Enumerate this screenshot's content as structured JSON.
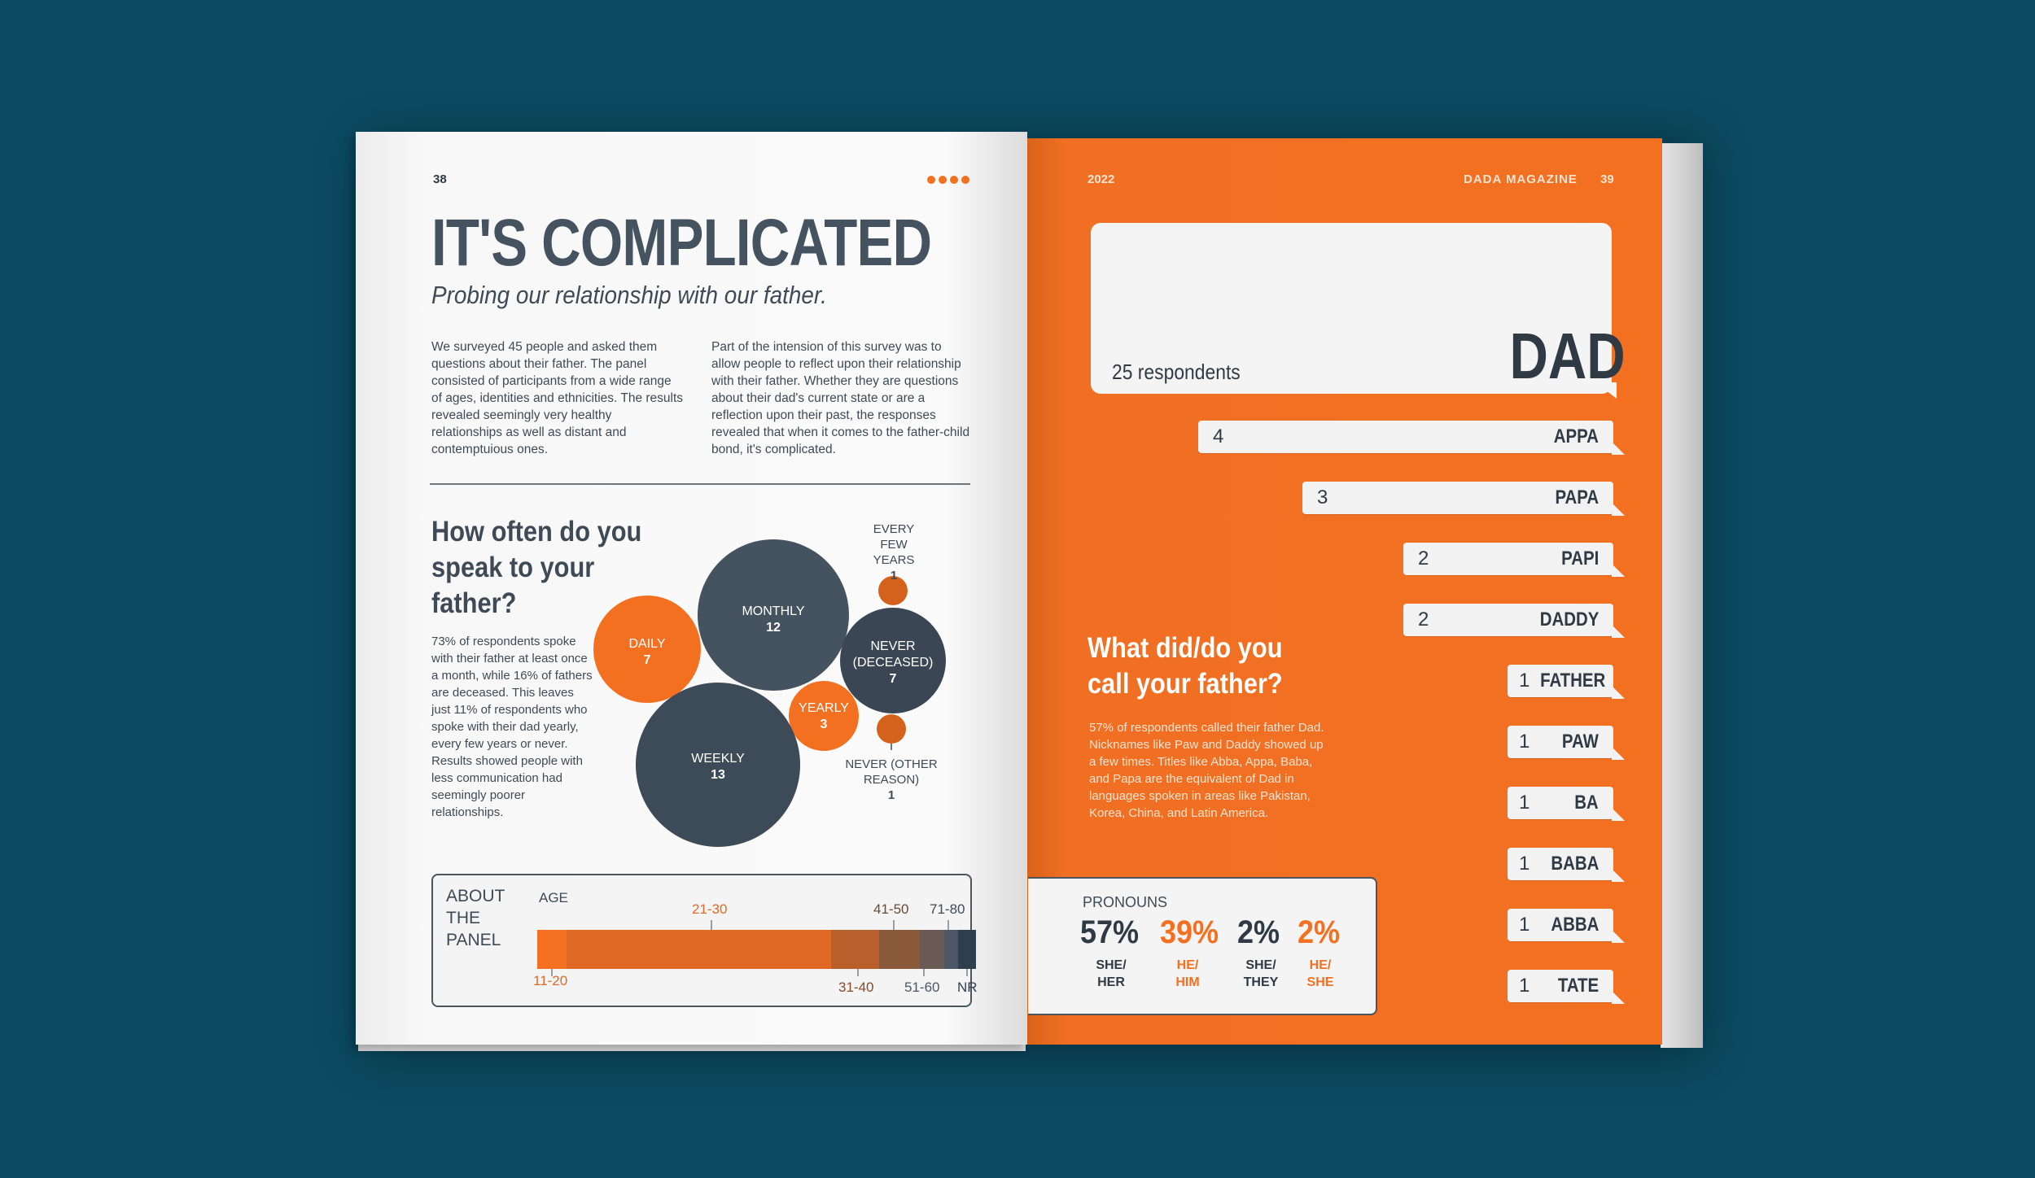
{
  "left": {
    "page_number": "38",
    "title": "IT'S COMPLICATED",
    "subtitle": "Probing our relationship with our father.",
    "intro_col1": "We surveyed 45 people and asked them questions about their father. The panel consisted of participants from a wide range of ages, identities and ethnicities. The results revealed seemingly very healthy relationships as well as distant and contemptuious ones.",
    "intro_col2": "Part of the intension of this survey was to allow people to reflect upon their relationship with their father. Whether they are questions about their dad's current state or are a reflection upon their past, the responses revealed that when it comes to the father-child bond, it's complicated.",
    "section_heading": "How often do you speak to your father?",
    "section_body": "73% of respondents spoke with their father at least once a month, while 16% of fathers are deceased. This leaves just 11% of respondents who spoke with their dad yearly, every few years or never. Results showed people with less communication had seemingly poorer relationships.",
    "bubbles": [
      {
        "label": "DAILY",
        "value": "7",
        "color": "#f37021"
      },
      {
        "label": "MONTHLY",
        "value": "12",
        "color": "#45525f"
      },
      {
        "label": "NEVER (DECEASED)",
        "value": "7",
        "color": "#3a4653"
      },
      {
        "label": "YEARLY",
        "value": "3",
        "color": "#f37021"
      },
      {
        "label": "WEEKLY",
        "value": "13",
        "color": "#3d4a57"
      },
      {
        "label": "EVERY FEW YEARS",
        "value": "1",
        "color": "#d4611c"
      },
      {
        "label": "NEVER (OTHER REASON)",
        "value": "1",
        "color": "#d4611c"
      }
    ],
    "panel": {
      "title": "ABOUT THE PANEL",
      "age_label": "AGE",
      "ranges": [
        "11-20",
        "21-30",
        "31-40",
        "41-50",
        "51-60",
        "71-80",
        "NR"
      ]
    }
  },
  "right": {
    "year": "2022",
    "magazine": "DADA MAGAZINE",
    "page_number": "39",
    "top_respondents": "25 respondents",
    "top_name": "DAD",
    "names": [
      {
        "count": "4",
        "name": "APPA"
      },
      {
        "count": "3",
        "name": "PAPA"
      },
      {
        "count": "2",
        "name": "PAPI"
      },
      {
        "count": "2",
        "name": "DADDY"
      },
      {
        "count": "1",
        "name": "FATHER"
      },
      {
        "count": "1",
        "name": "PAW"
      },
      {
        "count": "1",
        "name": "BA"
      },
      {
        "count": "1",
        "name": "BABA"
      },
      {
        "count": "1",
        "name": "ABBA"
      },
      {
        "count": "1",
        "name": "TATE"
      }
    ],
    "section_heading": "What did/do you call your father?",
    "section_body": "57% of respondents called their father Dad. Nicknames like Paw and Daddy showed up a few times. Titles like Abba, Appa, Baba, and Papa are the equivalent of Dad in languages spoken in areas like Pakistan, Korea, China, and Latin America.",
    "pronouns": {
      "title": "PRONOUNS",
      "items": [
        {
          "pct": "57%",
          "label": "SHE/ HER"
        },
        {
          "pct": "39%",
          "label": "HE/ HIM"
        },
        {
          "pct": "2%",
          "label": "SHE/ THEY"
        },
        {
          "pct": "2%",
          "label": "HE/ SHE"
        }
      ]
    }
  },
  "colors": {
    "background": "#0b4a61",
    "orange": "#f37021",
    "slate": "#45525f"
  }
}
